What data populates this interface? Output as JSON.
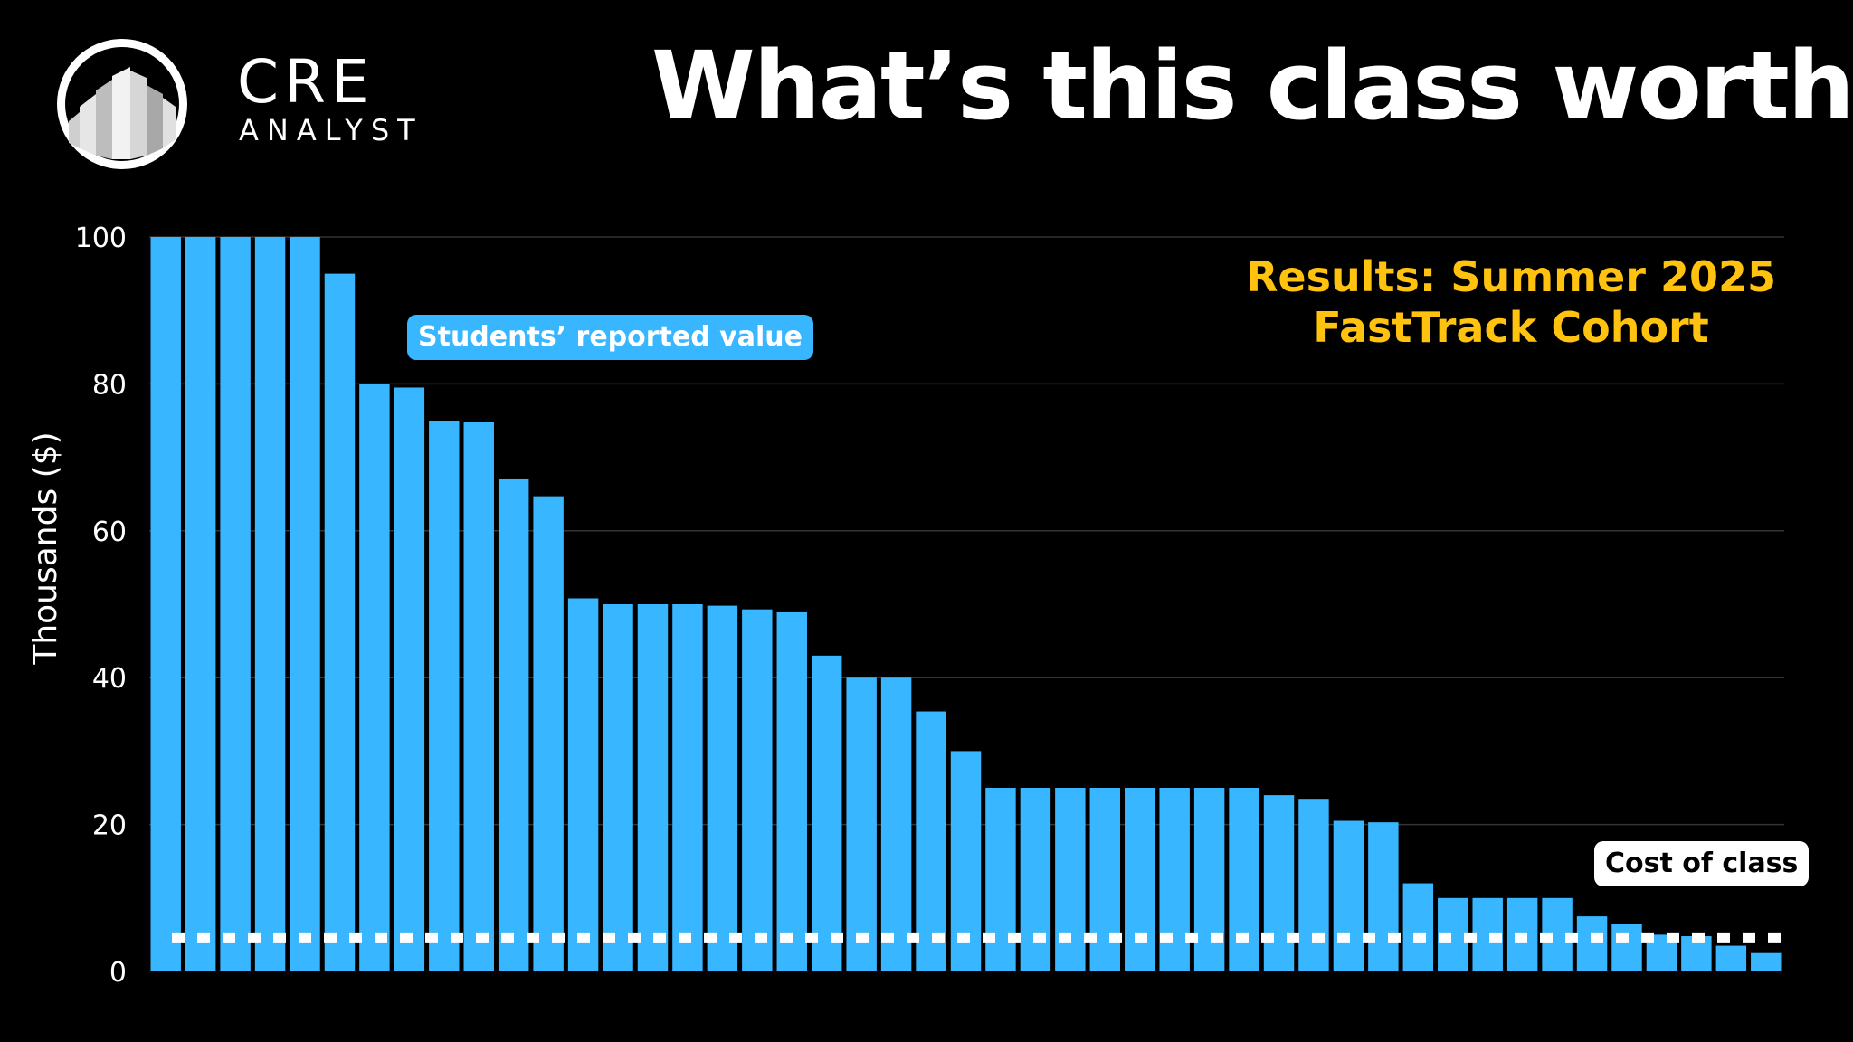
{
  "brand": {
    "name_top": "CRE",
    "name_bottom": "ANALYST"
  },
  "title": "What’s this class worth?",
  "results_line1": "Results: Summer 2025",
  "results_line2": "FastTrack Cohort",
  "colors": {
    "bar": "#38b6ff",
    "background": "#000000",
    "accent": "#ffc20e",
    "grid": "#333333",
    "cost_line": "#ffffff"
  },
  "chart_data": {
    "type": "bar",
    "ylabel": "Thousands ($)",
    "xlabel": "",
    "ylim": [
      0,
      100
    ],
    "yticks": [
      0,
      20,
      40,
      60,
      80,
      100
    ],
    "grid": true,
    "values": [
      100,
      100,
      100,
      100,
      100,
      95,
      80,
      79.5,
      75,
      74.8,
      67,
      64.7,
      50.8,
      50,
      50,
      50,
      49.8,
      49.3,
      48.9,
      43,
      40,
      40,
      35.4,
      30,
      25,
      25,
      25,
      25,
      25,
      25,
      25,
      25,
      24,
      23.5,
      20.5,
      20.3,
      12,
      10,
      10,
      10,
      10,
      7.5,
      6.5,
      5,
      4.8,
      3.5,
      2.5
    ],
    "cost_of_class": 5,
    "annotations": [
      {
        "label": "Students’ reported value",
        "style": "blue-pill"
      },
      {
        "label": "Cost of class",
        "style": "white-pill"
      }
    ]
  }
}
